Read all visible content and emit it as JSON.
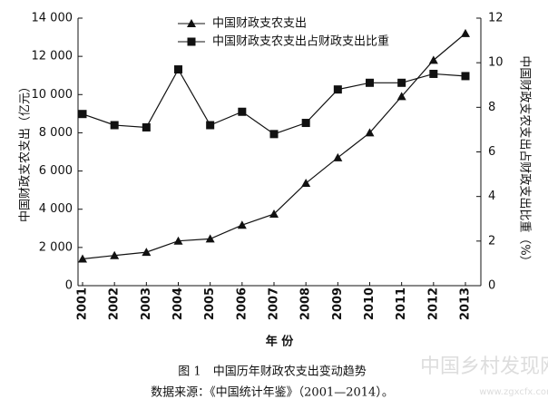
{
  "chart_data": {
    "type": "line",
    "title": "图 1　中国历年财政农支出变动趋势",
    "subtitle": "数据来源：《中国统计年鉴》（2001—2014）。",
    "watermark": "中国乡村发现网",
    "watermark_url": "www.zgxcfx.com",
    "x_label": "年 份",
    "y_label": "中国财政支农支出（亿元）",
    "y2_label": "中国财政支农支出占财政支出比重（%）",
    "categories": [
      "2001",
      "2002",
      "2003",
      "2004",
      "2005",
      "2006",
      "2007",
      "2008",
      "2009",
      "2010",
      "2011",
      "2012",
      "2013"
    ],
    "series": [
      {
        "name": "中国财政支农支出",
        "color": "#111111",
        "marker": "triangle",
        "values": [
          1400,
          1580,
          1750,
          2340,
          2450,
          3170,
          3750,
          5360,
          6700,
          8000,
          9900,
          11800,
          13200
        ]
      },
      {
        "name": "中国财政支农支出占财政支出比重",
        "color": "#111111",
        "marker": "square",
        "axis": "y2",
        "values": [
          7.7,
          7.2,
          7.1,
          9.7,
          7.2,
          7.8,
          6.8,
          7.3,
          8.8,
          9.1,
          9.1,
          9.5,
          9.4
        ]
      }
    ],
    "ylim": [
      0,
      14000
    ],
    "yticks": [
      0,
      {
        "value": 2000,
        "label": "2 000"
      },
      {
        "value": 4000,
        "label": "4 000"
      },
      {
        "value": 6000,
        "label": "6 000"
      },
      {
        "value": 8000,
        "label": "8 000"
      },
      {
        "value": 10000,
        "label": "10 000"
      },
      {
        "value": 12000,
        "label": "12 000"
      },
      {
        "value": 14000,
        "label": "14 000"
      }
    ],
    "y2lim": [
      0,
      12
    ],
    "y2ticks": [
      0,
      2,
      4,
      6,
      8,
      10,
      12
    ],
    "grid": false,
    "legend": "top"
  }
}
